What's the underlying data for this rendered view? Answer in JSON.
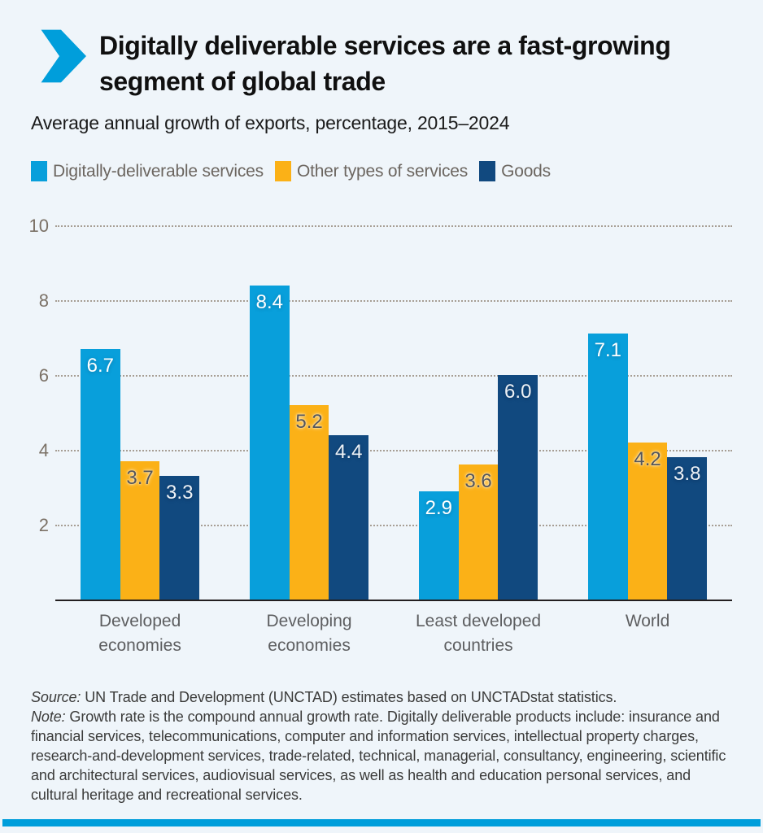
{
  "page": {
    "background_color": "#eff5fa",
    "accent_color": "#009edb"
  },
  "header": {
    "title_line1": "Digitally deliverable services are a fast-growing",
    "title_line2": "segment of global trade",
    "subtitle": "Average annual growth of exports, percentage, 2015–2024"
  },
  "legend": [
    {
      "label": "Digitally-deliverable services",
      "color": "#089fdb"
    },
    {
      "label": "Other types of services",
      "color": "#fbb117"
    },
    {
      "label": "Goods",
      "color": "#11497f"
    }
  ],
  "chart_data": {
    "type": "bar",
    "title": "Digitally deliverable services are a fast-growing segment of global trade",
    "subtitle": "Average annual growth of exports, percentage, 2015–2024",
    "categories": [
      "Developed economies",
      "Developing economies",
      "Least developed countries",
      "World"
    ],
    "categories_lines": [
      [
        "Developed",
        "economies"
      ],
      [
        "Developing",
        "economies"
      ],
      [
        "Least developed",
        "countries"
      ],
      [
        "World"
      ]
    ],
    "series": [
      {
        "name": "Digitally-deliverable services",
        "color": "#089fdb",
        "label_color": "#ffffff",
        "values": [
          6.7,
          8.4,
          2.9,
          7.1
        ]
      },
      {
        "name": "Other types of services",
        "color": "#fbb117",
        "label_color": "#55565a",
        "values": [
          3.7,
          5.2,
          3.6,
          4.2
        ]
      },
      {
        "name": "Goods",
        "color": "#11497f",
        "label_color": "#eef2f6",
        "values": [
          3.3,
          4.4,
          6.0,
          3.8
        ]
      }
    ],
    "xlabel": "",
    "ylabel": "",
    "ylim": [
      0,
      10
    ],
    "yticks": [
      2,
      4,
      6,
      8,
      10
    ],
    "grid": "horizontal-dotted",
    "gridline_color": "#a79e94",
    "axis_line_color": "#231f20",
    "value_labels": "inside-top, one decimal",
    "legend_position": "top-left"
  },
  "footer": {
    "source_label": "Source:",
    "source_text": " UN Trade and Development (UNCTAD) estimates based on UNCTADstat statistics.",
    "note_label": "Note:",
    "note_text": " Growth rate is the compound annual growth rate. Digitally deliverable products include: insurance and financial services, telecommunications, computer and information services, intellectual property charges, research-and-development services, trade-related, technical, managerial, consultancy, engineering, scientific and architectural services, audiovisual services, as well as health and education personal services, and cultural heritage and recreational services."
  }
}
